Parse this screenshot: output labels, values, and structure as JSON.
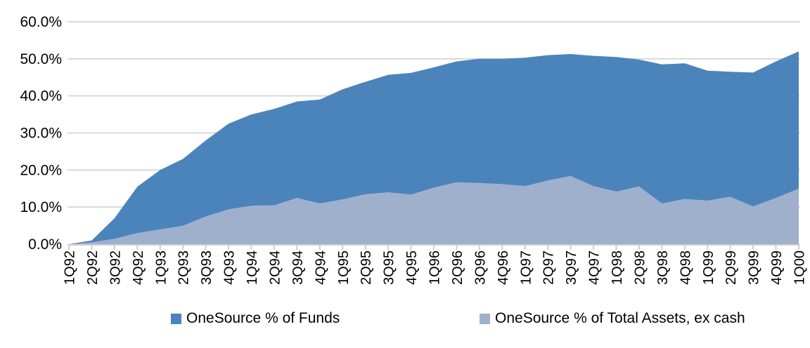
{
  "chart_data": {
    "type": "area",
    "title": "",
    "xlabel": "",
    "ylabel": "",
    "categories": [
      "1Q92",
      "2Q92",
      "3Q92",
      "4Q92",
      "1Q93",
      "2Q93",
      "3Q93",
      "4Q93",
      "1Q94",
      "2Q94",
      "3Q94",
      "4Q94",
      "1Q95",
      "2Q95",
      "3Q95",
      "4Q95",
      "1Q96",
      "2Q96",
      "3Q96",
      "4Q96",
      "1Q97",
      "2Q97",
      "3Q97",
      "4Q97",
      "1Q98",
      "2Q98",
      "3Q98",
      "4Q98",
      "1Q99",
      "2Q99",
      "3Q99",
      "4Q99",
      "1Q00"
    ],
    "series": [
      {
        "name": "OneSource % of Funds",
        "color": "#4A84BB",
        "values": [
          0.0,
          1.0,
          7.0,
          15.5,
          20.0,
          23.0,
          28.0,
          32.5,
          35.0,
          36.5,
          38.5,
          39.0,
          41.8,
          43.8,
          45.7,
          46.2,
          47.7,
          49.3,
          50.0,
          50.0,
          50.3,
          51.0,
          51.3,
          50.8,
          50.5,
          49.8,
          48.5,
          48.8,
          46.8,
          46.5,
          46.3,
          49.3,
          52.0
        ]
      },
      {
        "name": "OneSource % of Total Assets, ex cash",
        "color": "#9FB0CD",
        "values": [
          0.0,
          0.5,
          1.5,
          3.0,
          4.0,
          5.0,
          7.5,
          9.4,
          10.4,
          10.5,
          12.5,
          11.0,
          12.1,
          13.5,
          14.0,
          13.4,
          15.3,
          16.7,
          16.5,
          16.2,
          15.7,
          17.2,
          18.4,
          15.7,
          14.2,
          15.6,
          11.0,
          12.2,
          11.8,
          12.8,
          10.2,
          12.5,
          15.0
        ]
      }
    ],
    "ylim": [
      0,
      60
    ],
    "ytick_labels": [
      "0.0%",
      "10.0%",
      "20.0%",
      "30.0%",
      "40.0%",
      "50.0%",
      "60.0%"
    ],
    "grid": "horizontal",
    "gridline_color": "#D9D9D9",
    "axis_line_color": "#D0CECE",
    "tick_label_color": "#000000",
    "legend_position": "bottom",
    "x_labels_rotated_degrees": 90
  }
}
